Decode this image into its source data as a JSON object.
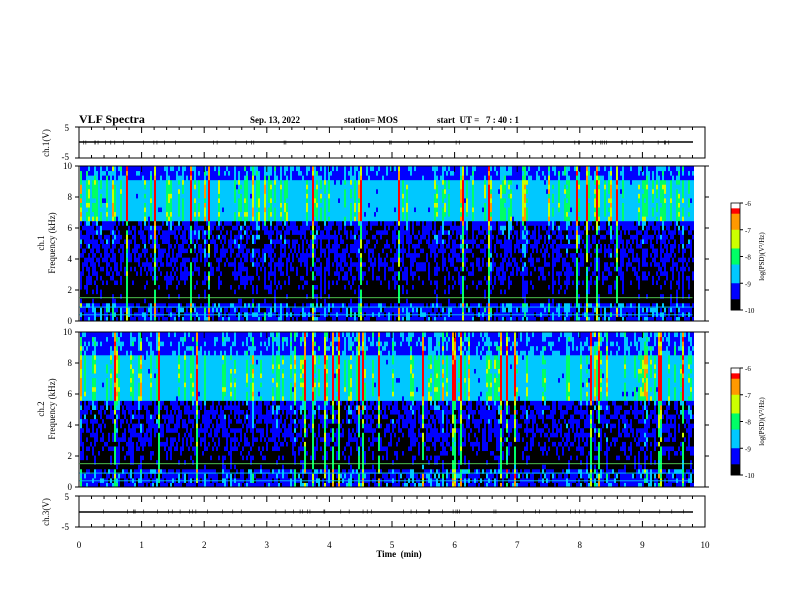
{
  "header": {
    "title": "VLF Spectra",
    "date": "Sep. 13, 2022",
    "station": "station= MOS",
    "start": "start  UT =   7 : 40 : 1"
  },
  "chart_data": [
    {
      "type": "line",
      "name": "ch1-waveform",
      "ylabel": "ch.1(V)",
      "ylim": [
        -5,
        5
      ],
      "y_ticks": [
        "5",
        "-5"
      ],
      "x": [
        0,
        10
      ],
      "values": [
        0,
        0
      ]
    },
    {
      "type": "heatmap",
      "name": "ch1-spectrogram",
      "ylabel": "ch.1\nFrequency (kHz)",
      "ylabel_line1": "ch.1",
      "ylabel_line2": "Frequency (kHz)",
      "ylim": [
        0,
        10
      ],
      "y_ticks": [
        "0",
        "2",
        "4",
        "6",
        "8",
        "10"
      ],
      "xlim": [
        0,
        10
      ],
      "data_end_min": 9.8,
      "bands_khz": [
        [
          0,
          1.2,
          "low-noise"
        ],
        [
          6.5,
          9.0,
          "upper-band"
        ]
      ],
      "colorbar": {
        "label": "log(PSD)(V²/Hz)",
        "range": [
          -10,
          -6
        ],
        "ticks": [
          "-6",
          "-7",
          "-8",
          "-9",
          "-10"
        ]
      }
    },
    {
      "type": "heatmap",
      "name": "ch2-spectrogram",
      "ylabel_line1": "ch.2",
      "ylabel_line2": "Frequency (kHz)",
      "ylim": [
        0,
        10
      ],
      "y_ticks": [
        "0",
        "2",
        "4",
        "6",
        "8",
        "10"
      ],
      "xlim": [
        0,
        10
      ],
      "data_end_min": 9.8,
      "bands_khz": [
        [
          0,
          1.2,
          "low-noise"
        ],
        [
          5.5,
          8.5,
          "upper-band"
        ]
      ],
      "colorbar": {
        "label": "log(PSD)(V²/Hz)",
        "range": [
          -10,
          -6
        ],
        "ticks": [
          "-6",
          "-7",
          "-8",
          "-9",
          "-10"
        ]
      }
    },
    {
      "type": "line",
      "name": "ch3-waveform",
      "ylabel": "ch.3(V)",
      "ylim": [
        -5,
        5
      ],
      "y_ticks": [
        "5",
        "-5"
      ],
      "x": [
        0,
        10
      ],
      "values": [
        0,
        0
      ]
    }
  ],
  "x_axis": {
    "label": "Time  (min)",
    "range": [
      0,
      10
    ],
    "ticks": [
      "0",
      "1",
      "2",
      "3",
      "4",
      "5",
      "6",
      "7",
      "8",
      "9",
      "10"
    ]
  },
  "colormap": [
    "#000000",
    "#0000ff",
    "#00c8ff",
    "#00ff66",
    "#ccff00",
    "#ff9900",
    "#ff0000",
    "#ffffff"
  ]
}
